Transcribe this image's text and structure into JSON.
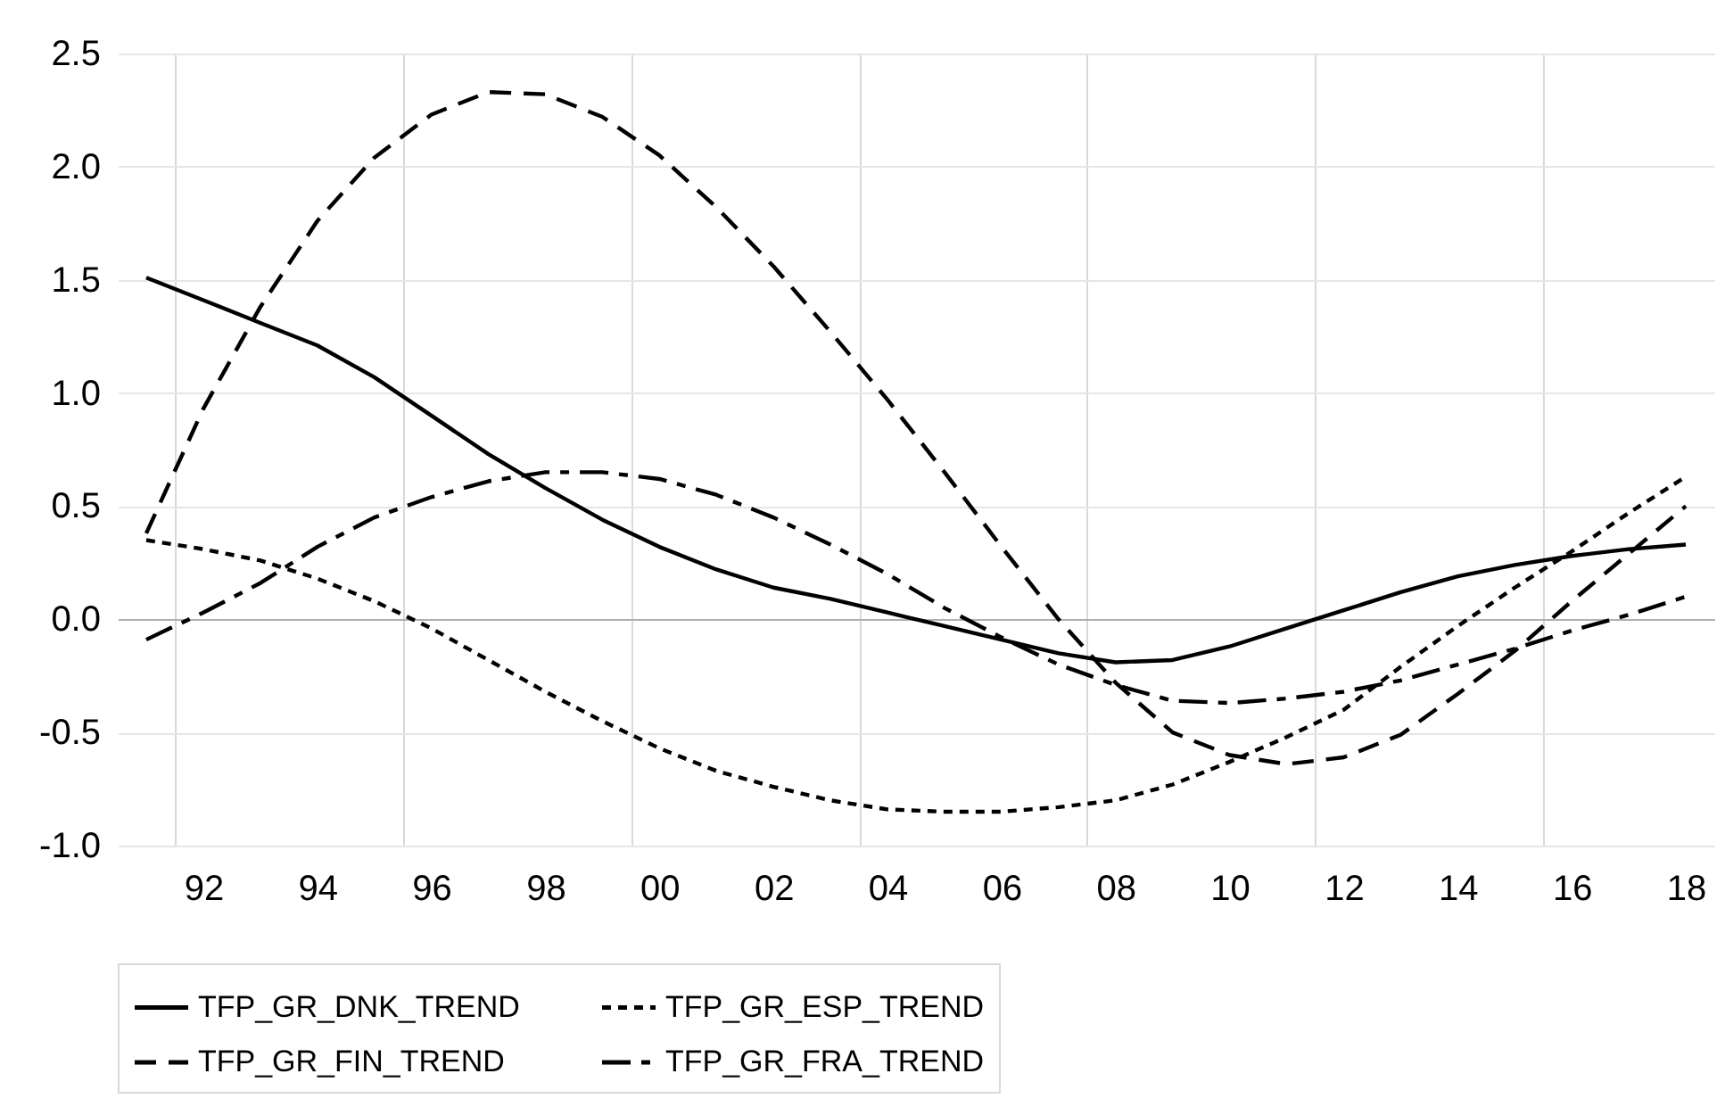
{
  "chart_data": {
    "type": "line",
    "x": [
      1991,
      1992,
      1993,
      1994,
      1995,
      1996,
      1997,
      1998,
      1999,
      2000,
      2001,
      2002,
      2003,
      2004,
      2005,
      2006,
      2007,
      2008,
      2009,
      2010,
      2011,
      2012,
      2013,
      2014,
      2015,
      2016,
      2017,
      2018
    ],
    "series": [
      {
        "name": "TFP_GR_DNK_TREND",
        "color": "#000000",
        "line_style": "solid",
        "values": [
          1.51,
          1.41,
          1.31,
          1.21,
          1.07,
          0.9,
          0.73,
          0.58,
          0.44,
          0.32,
          0.22,
          0.14,
          0.09,
          0.03,
          -0.03,
          -0.09,
          -0.15,
          -0.19,
          -0.18,
          -0.12,
          -0.04,
          0.04,
          0.12,
          0.19,
          0.24,
          0.28,
          0.31,
          0.33
        ]
      },
      {
        "name": "TFP_GR_ESP_TREND",
        "color": "#000000",
        "line_style": "dotted",
        "values": [
          0.35,
          0.31,
          0.26,
          0.18,
          0.08,
          -0.04,
          -0.18,
          -0.32,
          -0.45,
          -0.57,
          -0.67,
          -0.74,
          -0.8,
          -0.84,
          -0.85,
          -0.85,
          -0.83,
          -0.8,
          -0.73,
          -0.63,
          -0.52,
          -0.4,
          -0.21,
          -0.03,
          0.14,
          0.3,
          0.47,
          0.63
        ]
      },
      {
        "name": "TFP_GR_FIN_TREND",
        "color": "#000000",
        "line_style": "dashed",
        "values": [
          0.38,
          0.93,
          1.38,
          1.76,
          2.04,
          2.23,
          2.33,
          2.32,
          2.22,
          2.05,
          1.82,
          1.56,
          1.27,
          0.97,
          0.65,
          0.32,
          0.0,
          -0.28,
          -0.5,
          -0.6,
          -0.64,
          -0.61,
          -0.51,
          -0.33,
          -0.14,
          0.08,
          0.29,
          0.5
        ]
      },
      {
        "name": "TFP_GR_FRA_TREND",
        "color": "#000000",
        "line_style": "dashdot",
        "values": [
          -0.09,
          0.03,
          0.16,
          0.32,
          0.45,
          0.54,
          0.61,
          0.65,
          0.65,
          0.62,
          0.55,
          0.45,
          0.33,
          0.2,
          0.05,
          -0.08,
          -0.2,
          -0.29,
          -0.36,
          -0.37,
          -0.35,
          -0.32,
          -0.27,
          -0.2,
          -0.13,
          -0.05,
          0.02,
          0.1
        ]
      }
    ],
    "xlim": [
      1990.5,
      2018.5
    ],
    "xticks": [
      {
        "value": 1991.5,
        "label": null
      },
      {
        "value": 1992,
        "label": "92"
      },
      {
        "value": 1994,
        "label": "94"
      },
      {
        "value": 1995.5,
        "label": null
      },
      {
        "value": 1996,
        "label": "96"
      },
      {
        "value": 1998,
        "label": "98"
      },
      {
        "value": 1999.5,
        "label": null
      },
      {
        "value": 2000,
        "label": "00"
      },
      {
        "value": 2002,
        "label": "02"
      },
      {
        "value": 2003.5,
        "label": null
      },
      {
        "value": 2004,
        "label": "04"
      },
      {
        "value": 2006,
        "label": "06"
      },
      {
        "value": 2007.5,
        "label": null
      },
      {
        "value": 2008,
        "label": "08"
      },
      {
        "value": 2010,
        "label": "10"
      },
      {
        "value": 2011.5,
        "label": null
      },
      {
        "value": 2012,
        "label": "12"
      },
      {
        "value": 2014,
        "label": "14"
      },
      {
        "value": 2015.5,
        "label": null
      },
      {
        "value": 2016,
        "label": "16"
      },
      {
        "value": 2018,
        "label": "18"
      }
    ],
    "ylim": [
      -1.0,
      2.5
    ],
    "yticks": [
      {
        "value": -1.0,
        "label": "-1.0"
      },
      {
        "value": -0.5,
        "label": "-0.5"
      },
      {
        "value": 0,
        "label": "0.0"
      },
      {
        "value": 0.5,
        "label": "0.5"
      },
      {
        "value": 1.0,
        "label": "1.0"
      },
      {
        "value": 1.5,
        "label": "1.5"
      },
      {
        "value": 2.0,
        "label": "2.0"
      },
      {
        "value": 2.5,
        "label": "2.5"
      }
    ],
    "grid": true,
    "legend": "bottom"
  }
}
